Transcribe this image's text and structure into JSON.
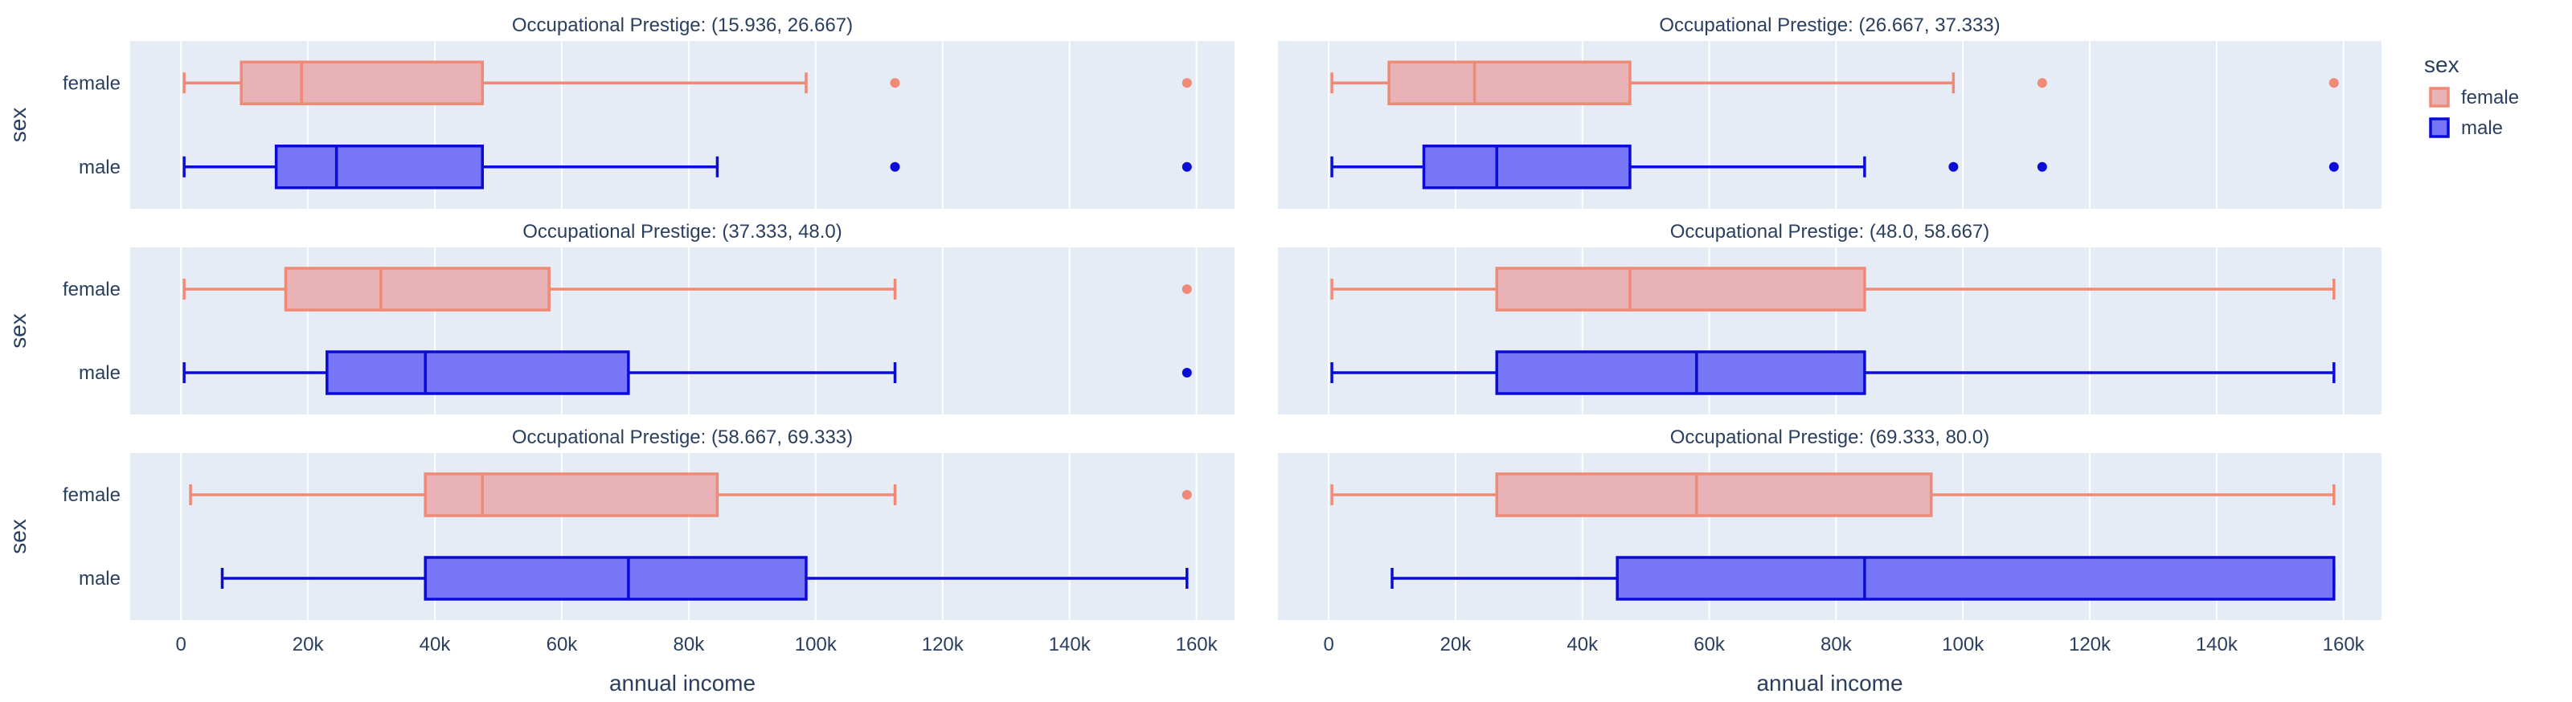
{
  "chart_data": {
    "type": "box",
    "orientation": "horizontal",
    "x_axis_title": "annual income",
    "y_axis_title": "sex",
    "x_range": [
      -8000,
      166000
    ],
    "x_ticks": [
      0,
      20000,
      40000,
      60000,
      80000,
      100000,
      120000,
      140000,
      160000
    ],
    "x_tick_labels": [
      "0",
      "20k",
      "40k",
      "60k",
      "80k",
      "100k",
      "120k",
      "140k",
      "160k"
    ],
    "categories": [
      "female",
      "male"
    ],
    "grid": true,
    "legend": {
      "title": "sex",
      "placement": "top-right",
      "items": [
        {
          "label": "female",
          "fill": "#e8b2b6",
          "line": "#ef8a76"
        },
        {
          "label": "male",
          "fill": "#7676f6",
          "line": "#0b0bd6"
        }
      ]
    },
    "facets": [
      {
        "title": "Occupational Prestige: (15.936, 26.667)",
        "boxes": {
          "female": {
            "min": 500,
            "q1": 9500,
            "median": 19000,
            "q3": 47500,
            "max": 98500,
            "outliers": [
              112500,
              158500
            ]
          },
          "male": {
            "min": 500,
            "q1": 15000,
            "median": 24500,
            "q3": 47500,
            "max": 84500,
            "outliers": [
              112500,
              158500
            ]
          }
        }
      },
      {
        "title": "Occupational Prestige: (26.667, 37.333)",
        "boxes": {
          "female": {
            "min": 500,
            "q1": 9500,
            "median": 23000,
            "q3": 47500,
            "max": 98500,
            "outliers": [
              112500,
              158500
            ]
          },
          "male": {
            "min": 500,
            "q1": 15000,
            "median": 26500,
            "q3": 47500,
            "max": 84500,
            "outliers": [
              98500,
              112500,
              158500
            ]
          }
        }
      },
      {
        "title": "Occupational Prestige: (37.333, 48.0)",
        "boxes": {
          "female": {
            "min": 500,
            "q1": 16500,
            "median": 31500,
            "q3": 58000,
            "max": 112500,
            "outliers": [
              158500
            ]
          },
          "male": {
            "min": 500,
            "q1": 23000,
            "median": 38500,
            "q3": 70500,
            "max": 112500,
            "outliers": [
              158500
            ]
          }
        }
      },
      {
        "title": "Occupational Prestige: (48.0, 58.667)",
        "boxes": {
          "female": {
            "min": 500,
            "q1": 26500,
            "median": 47500,
            "q3": 84500,
            "max": 158500,
            "outliers": []
          },
          "male": {
            "min": 500,
            "q1": 26500,
            "median": 58000,
            "q3": 84500,
            "max": 158500,
            "outliers": []
          }
        }
      },
      {
        "title": "Occupational Prestige: (58.667, 69.333)",
        "boxes": {
          "female": {
            "min": 1500,
            "q1": 38500,
            "median": 47500,
            "q3": 84500,
            "max": 112500,
            "outliers": [
              158500
            ]
          },
          "male": {
            "min": 6500,
            "q1": 38500,
            "median": 70500,
            "q3": 98500,
            "max": 158500,
            "outliers": []
          }
        }
      },
      {
        "title": "Occupational Prestige: (69.333, 80.0)",
        "boxes": {
          "female": {
            "min": 500,
            "q1": 26500,
            "median": 58000,
            "q3": 95000,
            "max": 158500,
            "outliers": []
          },
          "male": {
            "min": 10000,
            "q1": 45500,
            "median": 84500,
            "q3": 158500,
            "max": 158500,
            "outliers": []
          }
        }
      }
    ]
  }
}
